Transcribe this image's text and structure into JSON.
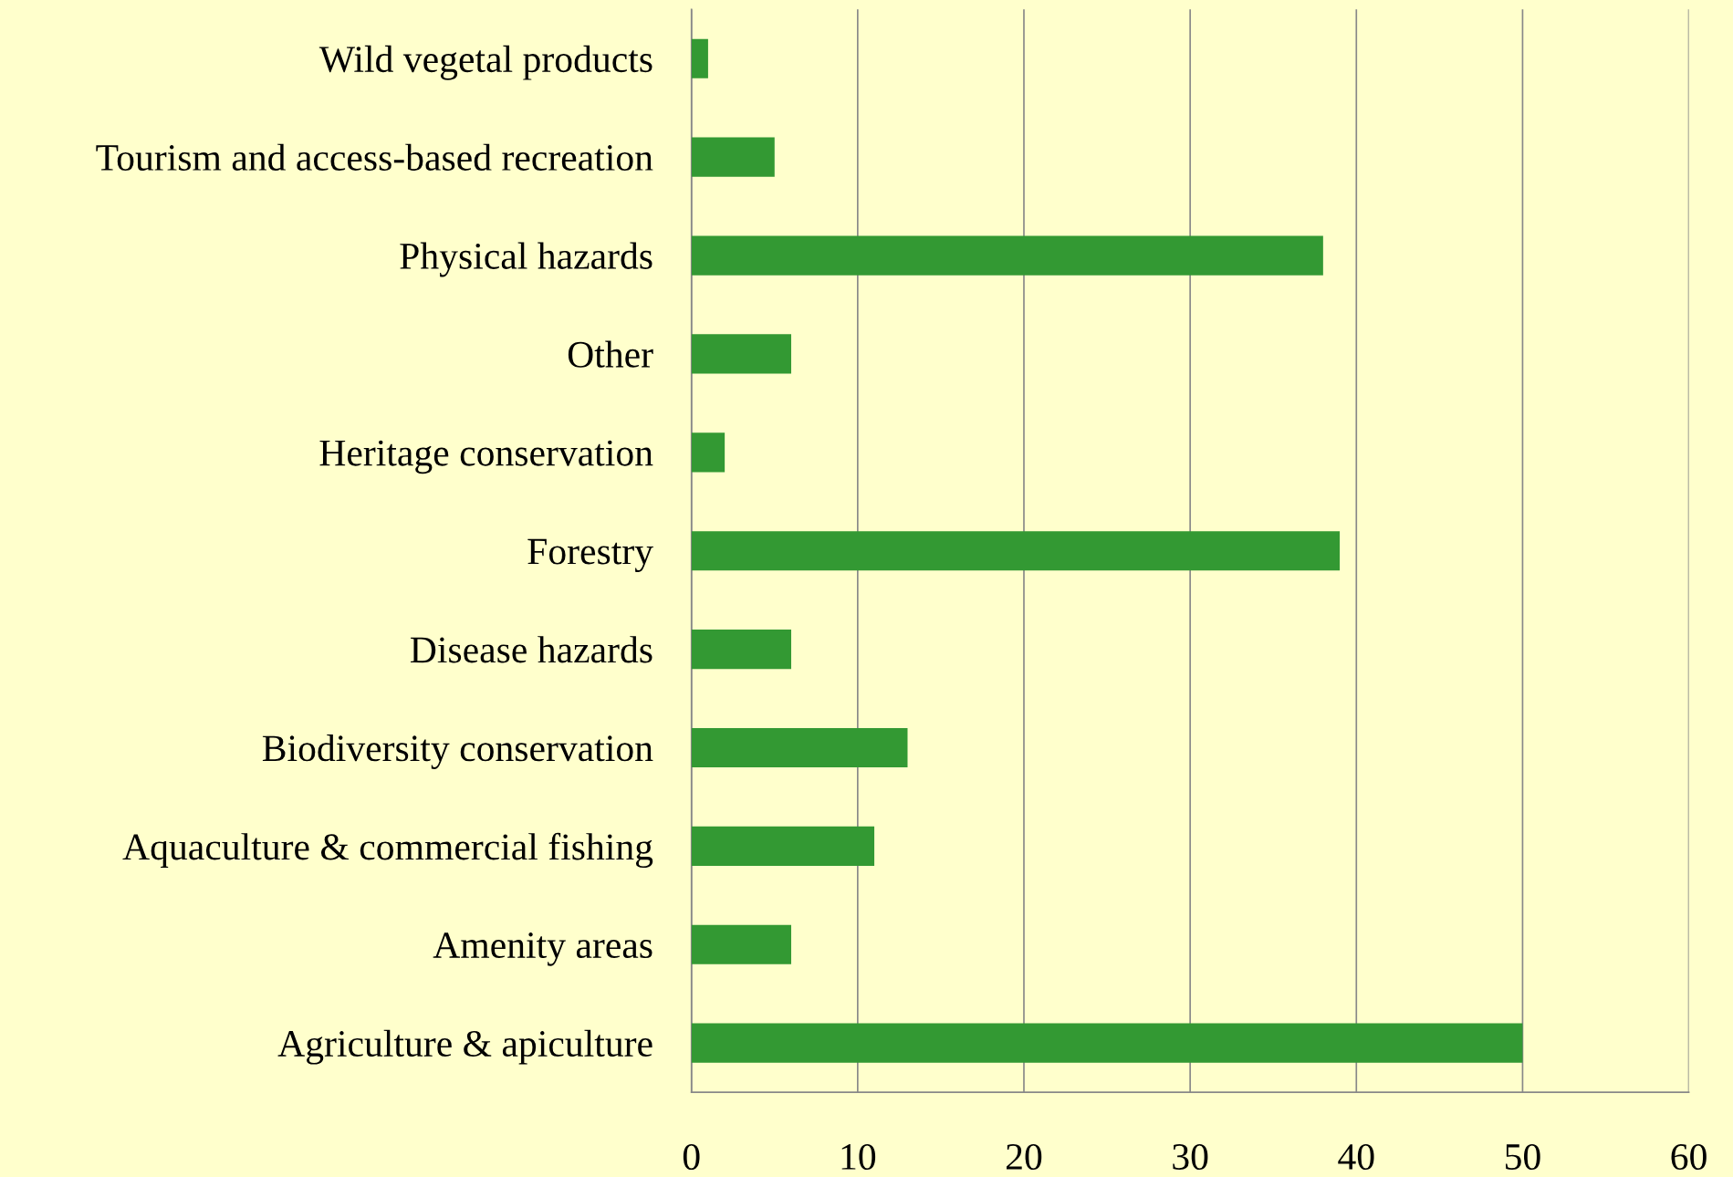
{
  "chart_data": {
    "type": "bar",
    "orientation": "horizontal",
    "categories": [
      "Wild vegetal products",
      "Tourism and access-based recreation",
      "Physical hazards",
      "Other",
      "Heritage conservation",
      "Forestry",
      "Disease hazards",
      "Biodiversity conservation",
      "Aquaculture & commercial fishing",
      "Amenity areas",
      "Agriculture & apiculture"
    ],
    "values": [
      1,
      5,
      38,
      6,
      2,
      39,
      6,
      13,
      11,
      6,
      50
    ],
    "color": "#339933",
    "xlim": [
      0,
      60
    ],
    "xticks": [
      0,
      10,
      20,
      30,
      40,
      50,
      60
    ],
    "grid": "x"
  }
}
